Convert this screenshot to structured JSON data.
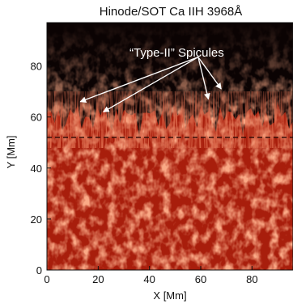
{
  "figure": {
    "title": "Hinode/SOT Ca IIH 3968Å",
    "annotation": "“Type-II” Spicules",
    "xlabel": "X [Mm]",
    "ylabel": "Y [Mm]",
    "xticks": [
      0,
      20,
      40,
      60,
      80
    ],
    "yticks": [
      0,
      20,
      40,
      60,
      80
    ],
    "xlim": [
      0,
      96
    ],
    "ylim": [
      0,
      97
    ],
    "limb_y": 52,
    "colors": {
      "sky": "#0b0303",
      "chromosphere": "#a81e0c",
      "bright_grain": "#f0603a",
      "dashed_line": "#2a0804",
      "arrow": "#ffffff"
    }
  }
}
